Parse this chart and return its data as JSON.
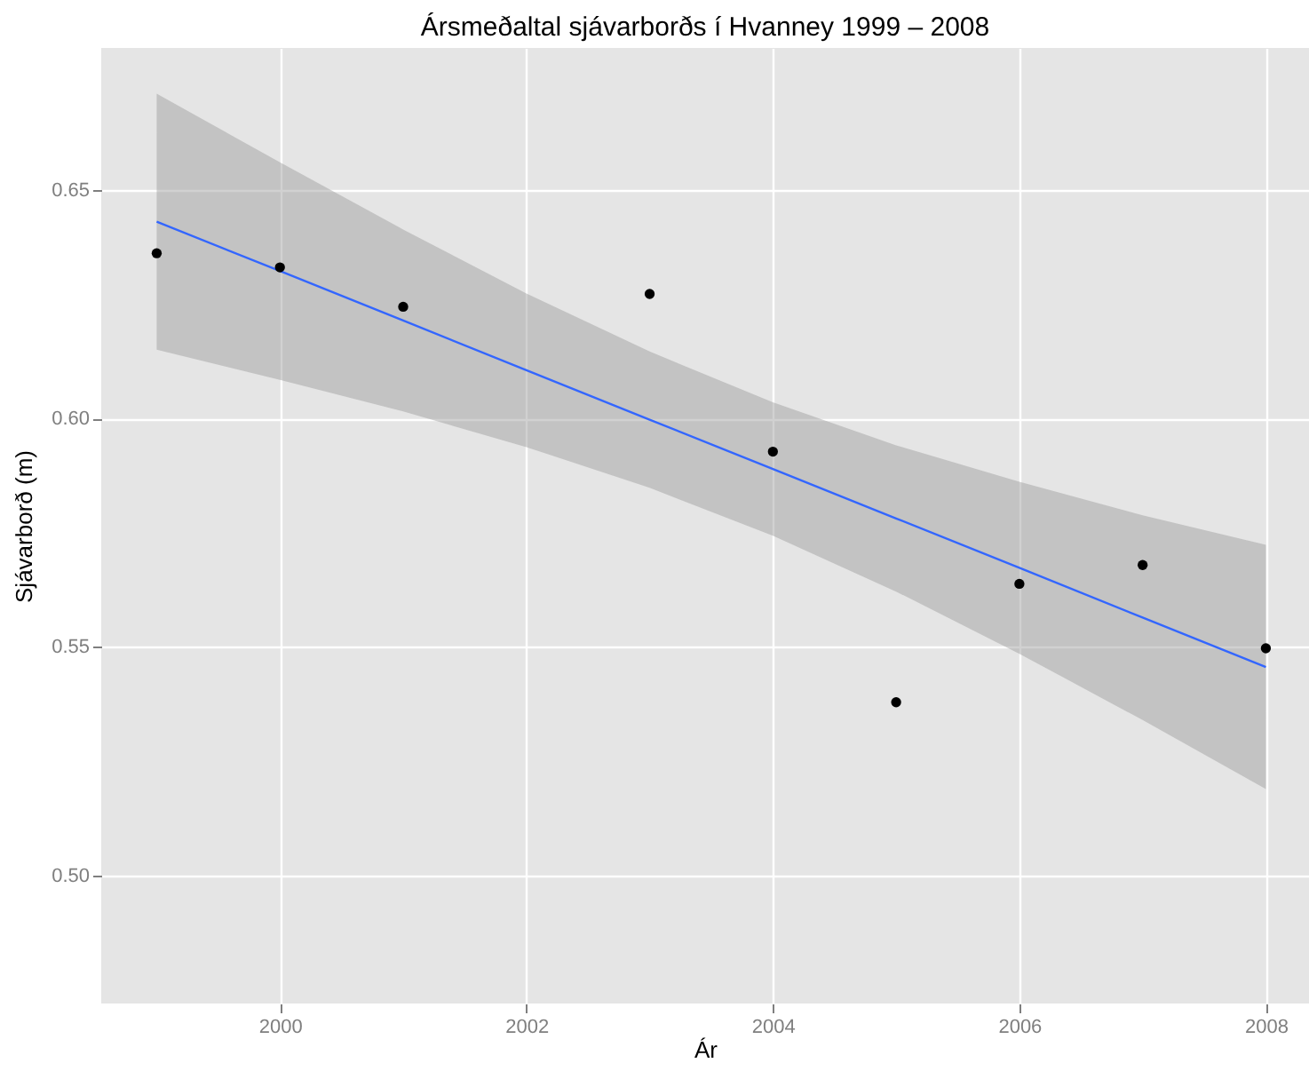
{
  "chart_data": {
    "type": "scatter",
    "title": "Ársmeðaltal sjávarborðs í Hvanney 1999 – 2008",
    "xlabel": "Ár",
    "ylabel": "Sjávarborð (m)",
    "x": [
      1999,
      2000,
      2001,
      2003,
      2004,
      2005,
      2006,
      2007,
      2008
    ],
    "series": [
      {
        "color": "#000000",
        "values": [
          0.6361,
          0.633,
          0.6244,
          0.6272,
          0.5927,
          0.5379,
          0.5638,
          0.5679,
          0.5497
        ]
      },
      {
        "type": "line",
        "marker": "none",
        "color": "#3366ff",
        "x": [
          1999,
          2000,
          2001,
          2002,
          2003,
          2004,
          2005,
          2006,
          2007,
          2008
        ],
        "values": [
          0.643,
          0.6322,
          0.6214,
          0.6105,
          0.5997,
          0.5889,
          0.5781,
          0.5673,
          0.5564,
          0.5456
        ],
        "lower": [
          0.615,
          0.6084,
          0.6015,
          0.5937,
          0.5848,
          0.5743,
          0.5621,
          0.5485,
          0.534,
          0.5189
        ],
        "upper": [
          0.671,
          0.656,
          0.6413,
          0.6273,
          0.6146,
          0.6035,
          0.5941,
          0.5861,
          0.5788,
          0.5723
        ]
      }
    ],
    "xlim": [
      1998.55,
      2008.35
    ],
    "ylim": [
      0.472,
      0.681
    ],
    "xticks": [
      2000,
      2002,
      2004,
      2006,
      2008
    ],
    "yticks": [
      {
        "value": 0.5,
        "label": "0.50"
      },
      {
        "value": 0.55,
        "label": "0.55"
      },
      {
        "value": 0.6,
        "label": "0.60"
      },
      {
        "value": 0.65,
        "label": "0.65"
      }
    ],
    "grid": true,
    "marker": "circle",
    "line_style": "solid"
  }
}
